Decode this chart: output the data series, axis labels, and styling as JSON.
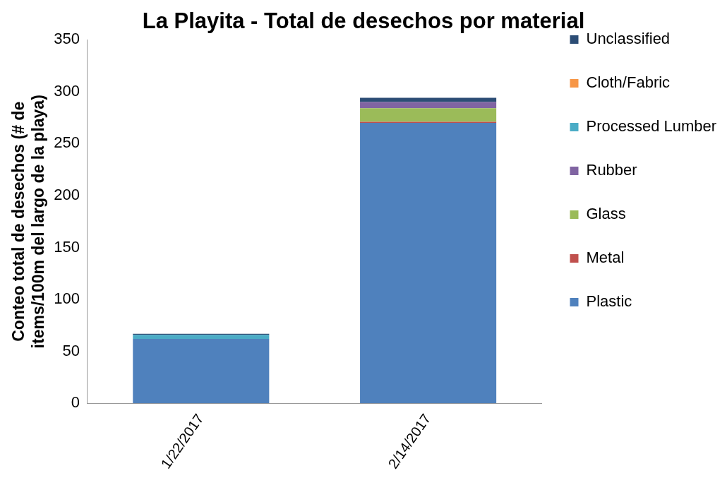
{
  "chart_data": {
    "type": "bar",
    "title": "La Playita - Total de desechos por material",
    "ylabel": "Conteo total de desechos (# de items/100m del largo de la playa)",
    "categories": [
      "1/22/2017",
      "2/14/2017"
    ],
    "stacked": true,
    "ylim": [
      0,
      350
    ],
    "yticks": [
      0,
      50,
      100,
      150,
      200,
      250,
      300,
      350
    ],
    "grid": false,
    "legend": "right",
    "series": [
      {
        "name": "Plastic",
        "color": "#4f81bd",
        "values": [
          62,
          270
        ]
      },
      {
        "name": "Metal",
        "color": "#c0504d",
        "values": [
          0,
          1
        ]
      },
      {
        "name": "Glass",
        "color": "#9bbb59",
        "values": [
          0,
          13
        ]
      },
      {
        "name": "Rubber",
        "color": "#8064a2",
        "values": [
          0,
          6
        ]
      },
      {
        "name": "Processed Lumber",
        "color": "#4bacc6",
        "values": [
          4,
          0
        ]
      },
      {
        "name": "Cloth/Fabric",
        "color": "#f79646",
        "values": [
          0,
          0
        ]
      },
      {
        "name": "Unclassified",
        "color": "#2c4d75",
        "values": [
          1,
          4
        ]
      }
    ]
  }
}
